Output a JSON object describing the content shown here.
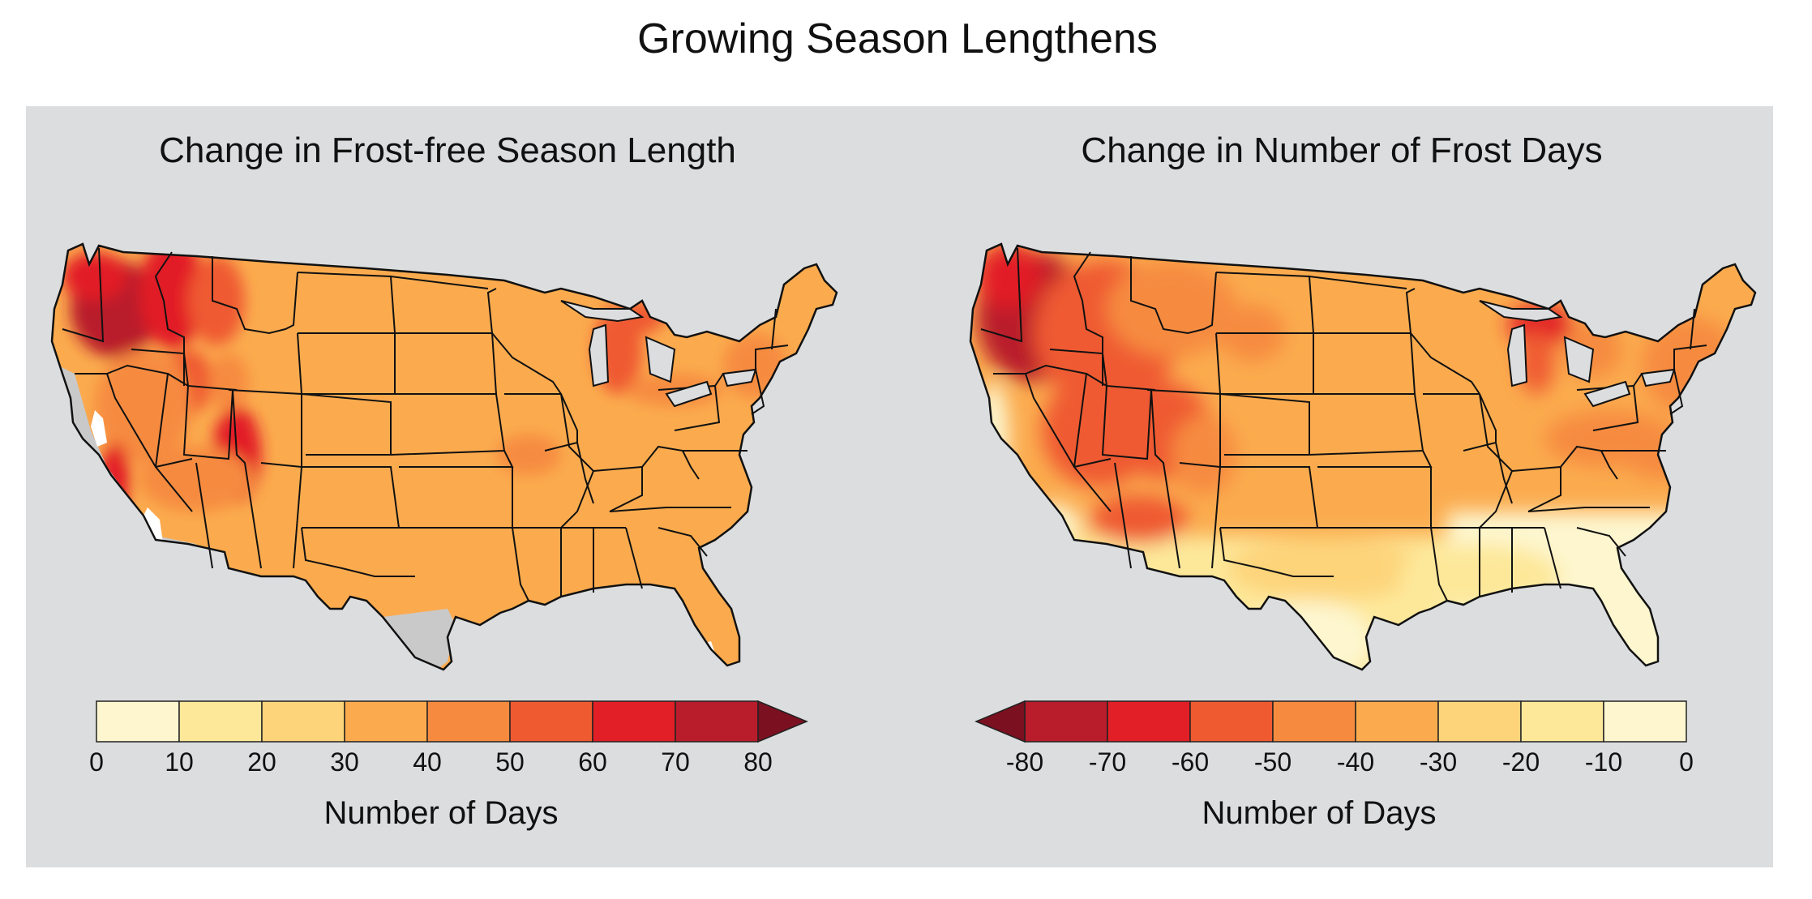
{
  "title": "Growing Season Lengthens",
  "maps": [
    {
      "title": "Change in Frost-free Season Length",
      "legend": {
        "colors": [
          "#fdf6cf",
          "#fde89a",
          "#fdd47a",
          "#fbab4e",
          "#f68b3f",
          "#ef5a30",
          "#e21f26",
          "#b91c2a"
        ],
        "overflow_color": "#7a1020",
        "overflow_side": "right",
        "ticks": [
          "0",
          "10",
          "20",
          "30",
          "40",
          "50",
          "60",
          "70",
          "80"
        ],
        "label": "Number of Days"
      }
    },
    {
      "title": "Change in Number of Frost Days",
      "legend": {
        "colors": [
          "#b91c2a",
          "#e21f26",
          "#ef5a30",
          "#f68b3f",
          "#fbab4e",
          "#fdd47a",
          "#fde89a",
          "#fdf6cf"
        ],
        "overflow_color": "#7a1020",
        "overflow_side": "left",
        "ticks": [
          "-80",
          "-70",
          "-60",
          "-50",
          "-40",
          "-30",
          "-20",
          "-10",
          "0"
        ],
        "label": "Number of Days"
      }
    }
  ],
  "colors": {
    "panel": "#dcdddf",
    "no_data": "#c9c9c9",
    "base": "#fbab4e"
  }
}
